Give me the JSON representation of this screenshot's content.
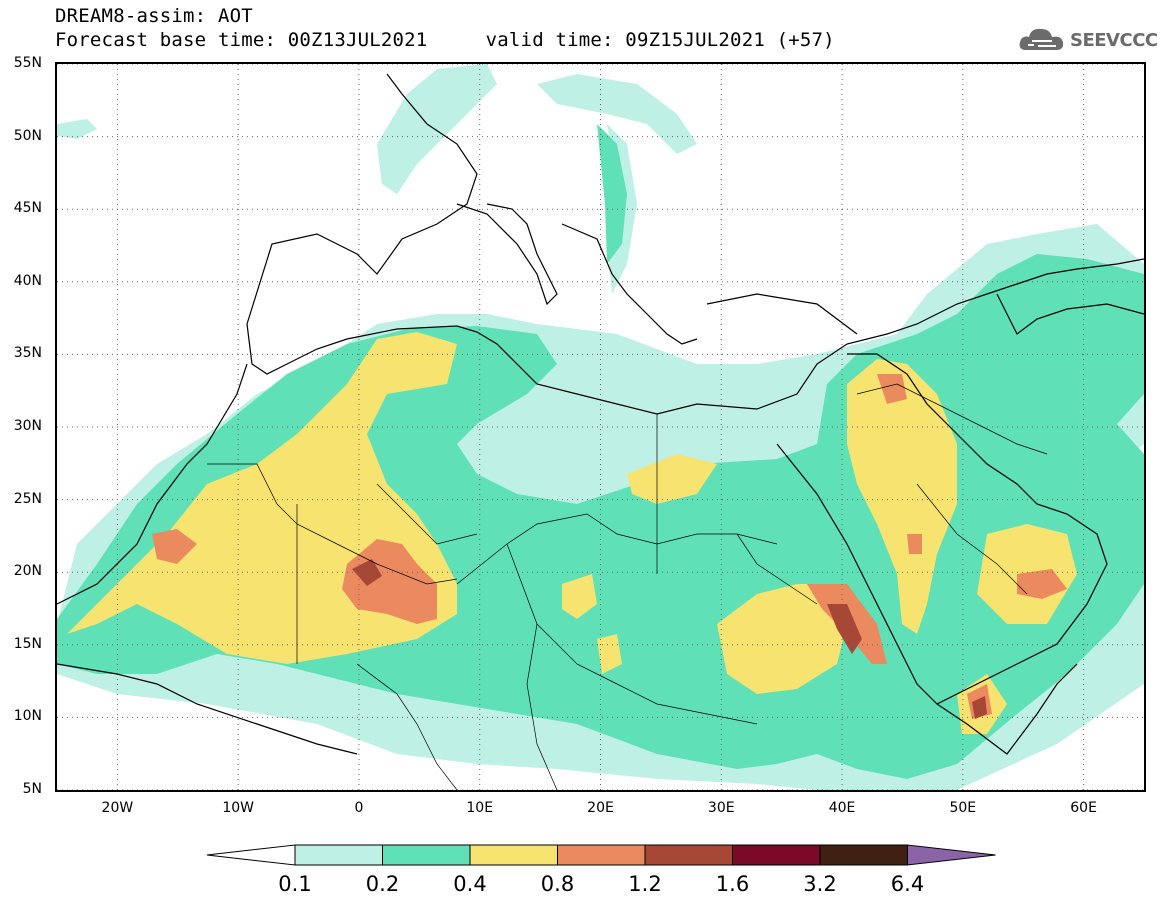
{
  "header": {
    "title": "DREAM8-assim: AOT",
    "subtitle": "Forecast base time: 00Z13JUL2021     valid time: 09Z15JUL2021 (+57)"
  },
  "logo": {
    "text": "SEEVCCC",
    "icon": "cloud-icon"
  },
  "map": {
    "extent": {
      "lon_min": -25,
      "lon_max": 65,
      "lat_min": 5,
      "lat_max": 55
    },
    "lat_labels": [
      "55N",
      "50N",
      "45N",
      "40N",
      "35N",
      "30N",
      "25N",
      "20N",
      "15N",
      "10N",
      "5N"
    ],
    "lat_values": [
      55,
      50,
      45,
      40,
      35,
      30,
      25,
      20,
      15,
      10,
      5
    ],
    "lon_labels": [
      "20W",
      "10W",
      "0",
      "10E",
      "20E",
      "30E",
      "40E",
      "50E",
      "60E"
    ],
    "lon_values": [
      -20,
      -10,
      0,
      10,
      20,
      30,
      40,
      50,
      60
    ],
    "variable": "AOT",
    "gridlines": "dotted"
  },
  "colorbar": {
    "levels": [
      "0.1",
      "0.2",
      "0.4",
      "0.8",
      "1.2",
      "1.6",
      "3.2",
      "6.4"
    ],
    "colors": [
      "#ffffff",
      "#bff0e6",
      "#5fe0b7",
      "#f7e36f",
      "#ea8a5e",
      "#a74735",
      "#7a0a26",
      "#402010",
      "#8b64a8"
    ]
  }
}
